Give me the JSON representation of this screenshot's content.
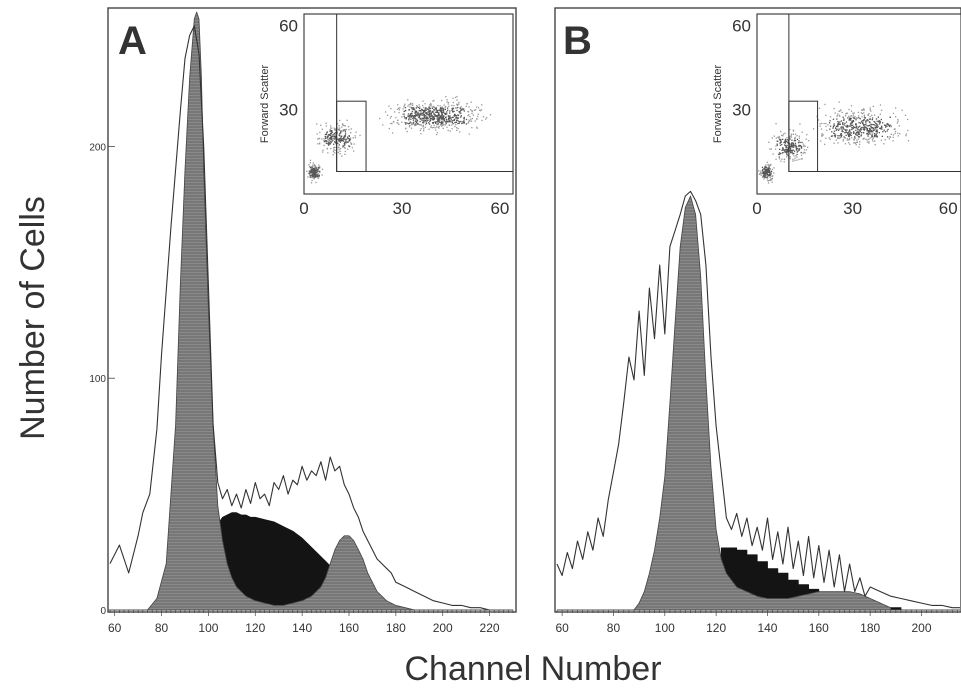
{
  "figure": {
    "ylabel": "Number of Cells",
    "xlabel": "Channel Number"
  },
  "chart_data": [
    {
      "panel": "A",
      "type": "area",
      "x_ticks": [
        60,
        80,
        100,
        120,
        140,
        160,
        180,
        200,
        220
      ],
      "y_ticks": [
        0,
        100,
        200
      ],
      "xlim": [
        58,
        230
      ],
      "ylim": [
        0,
        258
      ],
      "series": [
        {
          "role": "outline",
          "x": [
            58,
            62,
            66,
            70,
            72,
            75,
            78,
            80,
            84,
            88,
            90,
            92,
            94,
            96,
            98,
            100,
            102,
            104,
            106,
            108,
            110,
            112,
            114,
            116,
            118,
            120,
            122,
            124,
            126,
            128,
            130,
            132,
            134,
            136,
            138,
            140,
            142,
            144,
            146,
            148,
            150,
            152,
            154,
            156,
            158,
            160,
            162,
            164,
            166,
            168,
            170,
            172,
            174,
            176,
            178,
            180,
            184,
            188,
            192,
            196,
            200,
            204,
            208,
            212,
            216,
            220,
            224,
            228
          ],
          "y": [
            20,
            28,
            16,
            32,
            42,
            50,
            78,
            110,
            165,
            215,
            238,
            248,
            252,
            240,
            200,
            140,
            80,
            55,
            48,
            52,
            45,
            50,
            44,
            52,
            46,
            55,
            48,
            50,
            45,
            55,
            52,
            58,
            50,
            56,
            54,
            62,
            56,
            60,
            58,
            64,
            56,
            66,
            60,
            62,
            54,
            50,
            44,
            40,
            34,
            30,
            26,
            22,
            20,
            18,
            16,
            12,
            10,
            8,
            6,
            4,
            3,
            2,
            2,
            1,
            1,
            0,
            0,
            0
          ]
        },
        {
          "role": "shaded",
          "x": [
            74,
            78,
            82,
            86,
            88,
            90,
            92,
            94,
            95,
            96,
            97,
            98,
            100,
            102,
            104,
            106,
            108,
            110,
            112,
            114,
            116,
            120,
            124,
            128,
            132,
            136,
            140,
            144,
            148,
            150,
            152,
            154,
            156,
            158,
            160,
            162,
            164,
            166,
            168,
            170,
            172,
            176,
            180,
            184,
            188,
            192,
            196
          ],
          "y": [
            0,
            5,
            20,
            80,
            140,
            190,
            230,
            255,
            258,
            255,
            230,
            190,
            130,
            80,
            45,
            30,
            20,
            14,
            10,
            8,
            6,
            4,
            3,
            2,
            2,
            3,
            4,
            6,
            10,
            14,
            20,
            26,
            30,
            32,
            32,
            30,
            26,
            22,
            16,
            12,
            8,
            4,
            2,
            1,
            0,
            0,
            0
          ]
        },
        {
          "role": "dark",
          "x": [
            84,
            86,
            88,
            90,
            92,
            94,
            96,
            98,
            100,
            102,
            104,
            106,
            108,
            110,
            112,
            114,
            116,
            118,
            120,
            124,
            128,
            132,
            136,
            140,
            144,
            148,
            150,
            152,
            154,
            156,
            158,
            160,
            164,
            168,
            172,
            176,
            180,
            184,
            188
          ],
          "y": [
            0,
            1,
            2,
            4,
            7,
            11,
            16,
            22,
            28,
            33,
            37,
            40,
            41,
            42,
            42,
            41,
            41,
            40,
            40,
            39,
            38,
            36,
            34,
            31,
            27,
            23,
            21,
            19,
            17,
            15,
            13,
            11,
            8,
            5,
            3,
            2,
            1,
            0,
            0
          ]
        }
      ]
    },
    {
      "panel": "B",
      "type": "area",
      "x_ticks": [
        60,
        80,
        100,
        120,
        140,
        160,
        180,
        200
      ],
      "y_ticks": [],
      "xlim": [
        58,
        215
      ],
      "ylim": [
        0,
        260
      ],
      "series": [
        {
          "role": "outline",
          "x": [
            58,
            60,
            62,
            64,
            66,
            68,
            70,
            72,
            74,
            76,
            78,
            80,
            82,
            84,
            86,
            88,
            90,
            92,
            94,
            96,
            98,
            100,
            102,
            104,
            106,
            108,
            110,
            112,
            114,
            116,
            118,
            120,
            122,
            124,
            126,
            128,
            130,
            132,
            134,
            136,
            138,
            140,
            142,
            144,
            146,
            148,
            150,
            152,
            154,
            156,
            158,
            160,
            162,
            164,
            166,
            168,
            170,
            172,
            174,
            176,
            178,
            180,
            184,
            188,
            192,
            196,
            200,
            204,
            208,
            212,
            215
          ],
          "y": [
            20,
            15,
            25,
            18,
            30,
            22,
            34,
            26,
            40,
            32,
            48,
            60,
            72,
            90,
            110,
            100,
            130,
            102,
            140,
            118,
            150,
            120,
            158,
            165,
            172,
            180,
            182,
            178,
            172,
            150,
            110,
            80,
            60,
            40,
            35,
            42,
            32,
            40,
            28,
            36,
            26,
            40,
            22,
            34,
            20,
            36,
            18,
            30,
            15,
            32,
            14,
            28,
            12,
            26,
            10,
            24,
            8,
            20,
            8,
            14,
            6,
            10,
            8,
            6,
            5,
            4,
            3,
            2,
            2,
            1,
            1
          ]
        },
        {
          "role": "shaded",
          "x": [
            88,
            90,
            92,
            94,
            96,
            98,
            100,
            102,
            104,
            106,
            108,
            110,
            112,
            114,
            116,
            118,
            120,
            122,
            124,
            128,
            132,
            136,
            140,
            144,
            148,
            152,
            156,
            160,
            164,
            168,
            172,
            176,
            180,
            184,
            188
          ],
          "y": [
            0,
            3,
            8,
            16,
            26,
            40,
            58,
            90,
            125,
            158,
            175,
            180,
            172,
            145,
            100,
            62,
            35,
            22,
            16,
            10,
            8,
            6,
            5,
            5,
            5,
            6,
            7,
            8,
            8,
            8,
            8,
            7,
            5,
            3,
            1
          ]
        },
        {
          "role": "dark",
          "x": [
            98,
            100,
            104,
            108,
            112,
            116,
            120,
            122,
            124,
            128,
            132,
            136,
            140,
            144,
            148,
            152,
            156,
            160,
            164,
            168,
            172,
            176,
            180,
            184,
            188,
            192,
            196
          ],
          "y": [
            0,
            1,
            3,
            7,
            12,
            18,
            24,
            27,
            27,
            26,
            24,
            21,
            18,
            16,
            13,
            11,
            9,
            7,
            6,
            5,
            4,
            3,
            2,
            1,
            1,
            0,
            0
          ]
        }
      ]
    }
  ],
  "insets": [
    {
      "panel": "A",
      "type": "scatter",
      "ylabel": "Forward Scatter",
      "x_ticks": [
        0,
        30,
        60
      ],
      "y_ticks": [
        30,
        60
      ],
      "xlim": [
        0,
        64
      ],
      "ylim": [
        0,
        64
      ],
      "clusters": [
        {
          "cx": 40,
          "cy": 28,
          "sx": 12,
          "sy": 5,
          "n": 650
        },
        {
          "cx": 10,
          "cy": 20,
          "sx": 5,
          "sy": 5,
          "n": 260
        },
        {
          "cx": 3,
          "cy": 8,
          "sx": 2,
          "sy": 3,
          "n": 140
        }
      ],
      "gates": [
        {
          "x": [
            10,
            64
          ],
          "y": [
            8,
            64
          ]
        },
        {
          "x": [
            10,
            19
          ],
          "y": [
            8,
            33
          ]
        }
      ]
    },
    {
      "panel": "B",
      "type": "scatter",
      "ylabel": "Forward Scatter",
      "x_ticks": [
        0,
        30,
        60
      ],
      "y_ticks": [
        30,
        60
      ],
      "xlim": [
        0,
        64
      ],
      "ylim": [
        0,
        64
      ],
      "clusters": [
        {
          "cx": 32,
          "cy": 24,
          "sx": 12,
          "sy": 6,
          "n": 500
        },
        {
          "cx": 10,
          "cy": 17,
          "sx": 5,
          "sy": 5,
          "n": 220
        },
        {
          "cx": 3,
          "cy": 8,
          "sx": 2,
          "sy": 3,
          "n": 140
        }
      ],
      "gates": [
        {
          "x": [
            10,
            64
          ],
          "y": [
            8,
            64
          ]
        },
        {
          "x": [
            10,
            19
          ],
          "y": [
            8,
            33
          ]
        }
      ]
    }
  ]
}
